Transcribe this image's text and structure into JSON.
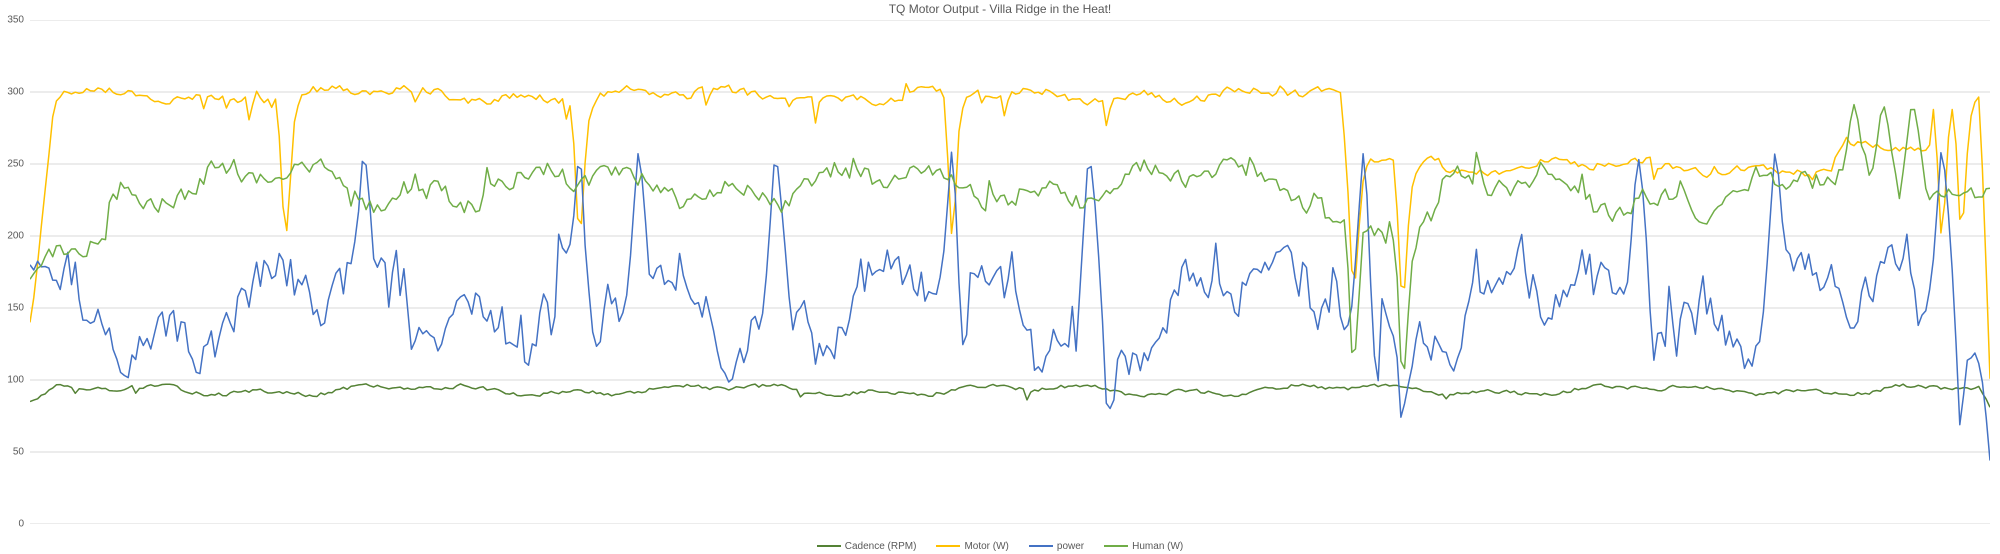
{
  "chart": {
    "type": "line",
    "title": "TQ Motor Output - Villa Ridge in the Heat!",
    "title_fontsize": 12,
    "title_color": "#595959",
    "background_color": "#ffffff",
    "plot_background": "#ffffff",
    "grid_color": "#d9d9d9",
    "axis_label_color": "#595959",
    "axis_label_fontsize": 10,
    "ylim": [
      0,
      350
    ],
    "ytick_step": 50,
    "yticks": [
      0,
      50,
      100,
      150,
      200,
      250,
      300,
      350
    ],
    "line_width": 1.5,
    "n_points": 520,
    "series": [
      {
        "name": "Cadence (RPM)",
        "color": "#548235",
        "base": 93,
        "amp": 6,
        "noise": 2,
        "jitter_prob": 0.02,
        "jitter_amp": -15,
        "start": 85,
        "end_drop": true,
        "end_value": 78
      },
      {
        "name": "Motor (W)",
        "color": "#ffc000",
        "base": 298,
        "amp": 8,
        "noise": 4,
        "jitter_prob": 0.05,
        "jitter_amp": -40,
        "start": 140,
        "segments": [
          {
            "from": 0.67,
            "to": 0.72,
            "base": 255
          },
          {
            "from": 0.72,
            "to": 0.92,
            "base": 248
          },
          {
            "from": 0.92,
            "to": 0.97,
            "base": 260
          }
        ],
        "big_dips": [
          0.13,
          0.28,
          0.47,
          0.675,
          0.7,
          0.975,
          0.985
        ],
        "end_drop": true,
        "end_value": 60
      },
      {
        "name": "power",
        "color": "#4472c4",
        "base": 150,
        "amp": 60,
        "noise": 25,
        "jitter_prob": 0.15,
        "jitter_amp": 70,
        "start": 180,
        "spikes": [
          0.17,
          0.28,
          0.31,
          0.38,
          0.47,
          0.54,
          0.68,
          0.82,
          0.89,
          0.975
        ],
        "spike_height": 280,
        "low_dips": [
          0.285,
          0.29,
          0.475,
          0.55,
          0.685,
          0.7,
          0.965,
          0.985
        ],
        "end_drop": true,
        "end_value": 28
      },
      {
        "name": "Human (W)",
        "color": "#70ad47",
        "base": 235,
        "amp": 25,
        "noise": 10,
        "jitter_prob": 0.1,
        "jitter_amp": 35,
        "start": 170,
        "segments": [
          {
            "from": 0.0,
            "to": 0.04,
            "base": 200
          },
          {
            "from": 0.66,
            "to": 0.72,
            "base": 210
          },
          {
            "from": 0.72,
            "to": 0.9,
            "base": 230
          }
        ],
        "big_dips": [
          0.675,
          0.7
        ],
        "spikes": [
          0.93,
          0.945,
          0.96
        ],
        "spike_height": 305,
        "end_drop": false
      }
    ],
    "legend": {
      "position": "bottom-center",
      "fontsize": 10,
      "label_color": "#595959",
      "swatch_width": 24
    }
  }
}
